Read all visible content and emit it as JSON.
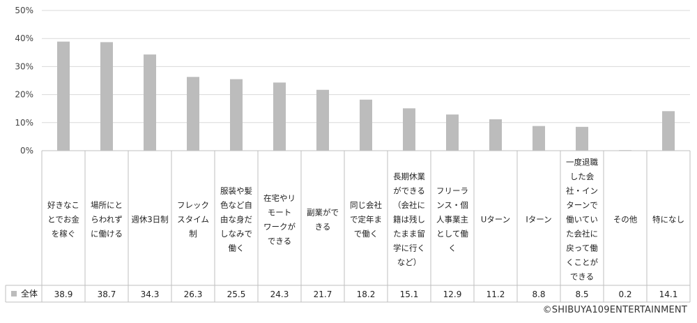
{
  "chart_data": {
    "type": "bar",
    "categories": [
      [
        "好きなこ",
        "とでお金",
        "を稼ぐ"
      ],
      [
        "場所にと",
        "らわれず",
        "に働ける"
      ],
      [
        "週休3日制"
      ],
      [
        "フレック",
        "スタイム",
        "制"
      ],
      [
        "服装や髪",
        "色など自",
        "由な身だ",
        "しなみで",
        "働く"
      ],
      [
        "在宅やリ",
        "モート",
        "ワークが",
        "できる"
      ],
      [
        "副業がで",
        "きる"
      ],
      [
        "同じ会社",
        "で定年ま",
        "で働く"
      ],
      [
        "長期休業",
        "ができる",
        "（会社に",
        "籍は残し",
        "たまま留",
        "学に行く",
        "など）"
      ],
      [
        "フリーラ",
        "ンス・個",
        "人事業主",
        "として働",
        "く"
      ],
      [
        "Uターン"
      ],
      [
        "Iターン"
      ],
      [
        "一度退職",
        "した会",
        "社・イン",
        "ターンで",
        "働いてい",
        "た会社に",
        "戻って働",
        "くことが",
        "できる"
      ],
      [
        "その他"
      ],
      [
        "特になし"
      ]
    ],
    "series": [
      {
        "name": "全体",
        "values": [
          38.9,
          38.7,
          34.3,
          26.3,
          25.5,
          24.3,
          21.7,
          18.2,
          15.1,
          12.9,
          11.2,
          8.8,
          8.5,
          0.2,
          14.1
        ]
      }
    ],
    "value_labels": [
      "38.9",
      "38.7",
      "34.3",
      "26.3",
      "25.5",
      "24.3",
      "21.7",
      "18.2",
      "15.1",
      "12.9",
      "11.2",
      "8.8",
      "8.5",
      "0.2",
      "14.1"
    ],
    "yticks": [
      "0%",
      "10%",
      "20%",
      "30%",
      "40%",
      "50%"
    ],
    "ylim": [
      0,
      50
    ],
    "grid": true,
    "legend": "data-table",
    "bar_color": "#bcbcbc",
    "grid_color": "#d9d9d9"
  },
  "footer": {
    "copyright": "©SHIBUYA109ENTERTAINMENT"
  }
}
